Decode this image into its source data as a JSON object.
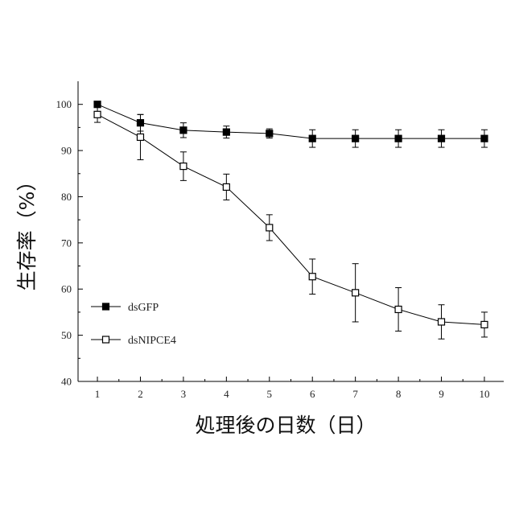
{
  "chart_data": {
    "type": "line",
    "xlabel": "処理後の日数（日）",
    "ylabel": "生存率（%）",
    "xlim": [
      0.55,
      10.45
    ],
    "ylim": [
      40,
      105
    ],
    "x_ticks": [
      1,
      2,
      3,
      4,
      5,
      6,
      7,
      8,
      9,
      10
    ],
    "y_ticks": [
      40,
      50,
      60,
      70,
      80,
      90,
      100
    ],
    "legend_position": "bottom-left",
    "grid": false,
    "series": [
      {
        "name": "dsGFP",
        "marker": "filled-square",
        "color": "#000000",
        "x": [
          1,
          2,
          3,
          4,
          5,
          6,
          7,
          8,
          9,
          10
        ],
        "y": [
          100,
          96,
          94.4,
          94,
          93.7,
          92.6,
          92.6,
          92.6,
          92.6,
          92.6
        ],
        "error": [
          0.5,
          1.8,
          1.6,
          1.3,
          1.0,
          1.9,
          1.9,
          1.9,
          1.9,
          1.9
        ]
      },
      {
        "name": "dsNIPCE4",
        "marker": "open-square",
        "color": "#000000",
        "x": [
          1,
          2,
          3,
          4,
          5,
          6,
          7,
          8,
          9,
          10
        ],
        "y": [
          97.8,
          92.9,
          86.6,
          82.1,
          73.3,
          62.7,
          59.2,
          55.6,
          52.9,
          52.3
        ],
        "error": [
          1.7,
          4.9,
          3.1,
          2.8,
          2.8,
          3.8,
          6.3,
          4.7,
          3.7,
          2.7
        ]
      }
    ]
  }
}
